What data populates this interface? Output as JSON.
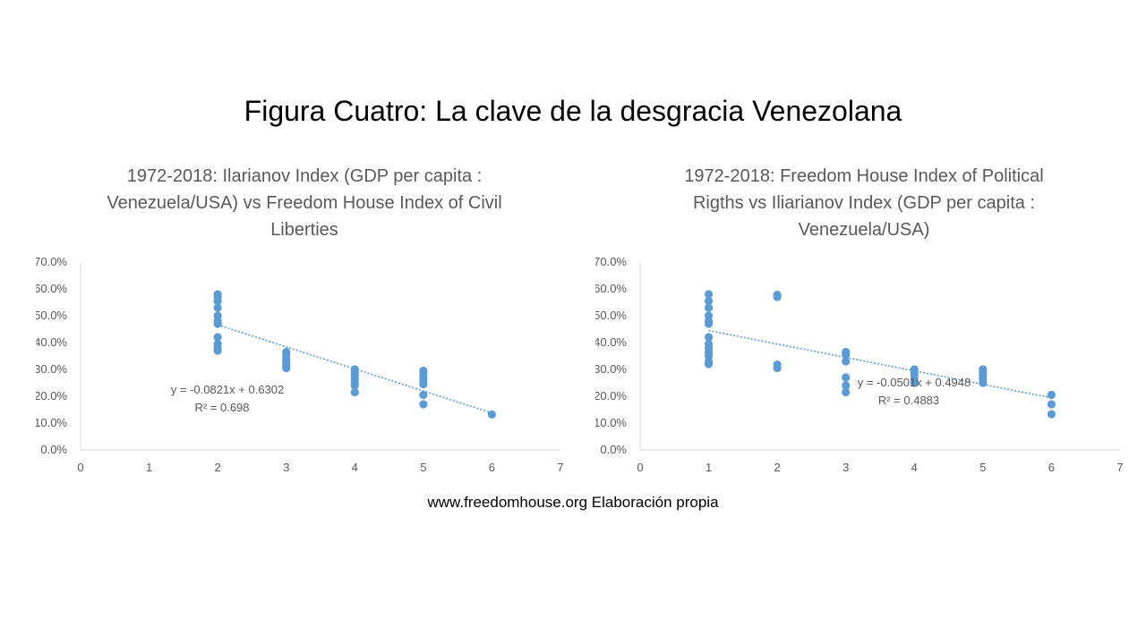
{
  "slide": {
    "title": "Figura Cuatro: La clave de la desgracia Venezolana",
    "footer": "www.freedomhouse.org  Elaboración propia"
  },
  "colors": {
    "point": "#5b9bd5",
    "trendline": "#5b9bd5",
    "axis": "#d9d9d9",
    "text": "#595959"
  },
  "chart_data": [
    {
      "type": "scatter",
      "title": "1972-2018: Ilarianov Index (GDP per capita : Venezuela/USA) vs Freedom House Index of Civil Liberties",
      "title_lines": [
        "1972-2018: Ilarianov Index (GDP per capita :",
        "Venezuela/USA) vs Freedom House Index of Civil",
        "Liberties"
      ],
      "xlim": [
        0,
        7
      ],
      "ylim": [
        0,
        0.7
      ],
      "x_ticks": [
        "0",
        "1",
        "2",
        "3",
        "4",
        "5",
        "6",
        "7"
      ],
      "y_ticks": [
        "0.0%",
        "10.0%",
        "20.0%",
        "30.0%",
        "40.0%",
        "50.0%",
        "60.0%",
        "70.0%"
      ],
      "grid": false,
      "points": [
        {
          "x": 2,
          "y": 0.58
        },
        {
          "x": 2,
          "y": 0.57
        },
        {
          "x": 2,
          "y": 0.555
        },
        {
          "x": 2,
          "y": 0.53
        },
        {
          "x": 2,
          "y": 0.5
        },
        {
          "x": 2,
          "y": 0.48
        },
        {
          "x": 2,
          "y": 0.47
        },
        {
          "x": 2,
          "y": 0.42
        },
        {
          "x": 2,
          "y": 0.395
        },
        {
          "x": 2,
          "y": 0.38
        },
        {
          "x": 2,
          "y": 0.37
        },
        {
          "x": 3,
          "y": 0.365
        },
        {
          "x": 3,
          "y": 0.355
        },
        {
          "x": 3,
          "y": 0.34
        },
        {
          "x": 3,
          "y": 0.33
        },
        {
          "x": 3,
          "y": 0.32
        },
        {
          "x": 3,
          "y": 0.31
        },
        {
          "x": 3,
          "y": 0.305
        },
        {
          "x": 4,
          "y": 0.3
        },
        {
          "x": 4,
          "y": 0.29
        },
        {
          "x": 4,
          "y": 0.28
        },
        {
          "x": 4,
          "y": 0.265
        },
        {
          "x": 4,
          "y": 0.25
        },
        {
          "x": 4,
          "y": 0.24
        },
        {
          "x": 4,
          "y": 0.215
        },
        {
          "x": 5,
          "y": 0.295
        },
        {
          "x": 5,
          "y": 0.285
        },
        {
          "x": 5,
          "y": 0.27
        },
        {
          "x": 5,
          "y": 0.26
        },
        {
          "x": 5,
          "y": 0.245
        },
        {
          "x": 5,
          "y": 0.205
        },
        {
          "x": 5,
          "y": 0.17
        },
        {
          "x": 6,
          "y": 0.132
        }
      ],
      "trendline": {
        "slope": -0.0821,
        "intercept": 0.6302,
        "x_from": 2,
        "x_to": 6
      },
      "equation": "y = -0.0821x + 0.6302",
      "r2": "R² = 0.698"
    },
    {
      "type": "scatter",
      "title": "1972-2018: Freedom House Index of Political Rigths vs Iliarianov Index (GDP per capita : Venezuela/USA)",
      "title_lines": [
        "1972-2018: Freedom House Index of Political",
        "Rigths vs Iliarianov Index (GDP per capita :",
        "Venezuela/USA)"
      ],
      "xlim": [
        0,
        7
      ],
      "ylim": [
        0,
        0.7
      ],
      "x_ticks": [
        "0",
        "1",
        "2",
        "3",
        "4",
        "5",
        "6",
        "7"
      ],
      "y_ticks": [
        "0.0%",
        "10.0%",
        "20.0%",
        "30.0%",
        "40.0%",
        "50.0%",
        "60.0%",
        "70.0%"
      ],
      "grid": false,
      "points": [
        {
          "x": 1,
          "y": 0.58
        },
        {
          "x": 1,
          "y": 0.555
        },
        {
          "x": 1,
          "y": 0.53
        },
        {
          "x": 1,
          "y": 0.5
        },
        {
          "x": 1,
          "y": 0.48
        },
        {
          "x": 1,
          "y": 0.47
        },
        {
          "x": 1,
          "y": 0.42
        },
        {
          "x": 1,
          "y": 0.395
        },
        {
          "x": 1,
          "y": 0.38
        },
        {
          "x": 1,
          "y": 0.365
        },
        {
          "x": 1,
          "y": 0.35
        },
        {
          "x": 1,
          "y": 0.33
        },
        {
          "x": 1,
          "y": 0.32
        },
        {
          "x": 2,
          "y": 0.578
        },
        {
          "x": 2,
          "y": 0.57
        },
        {
          "x": 2,
          "y": 0.318
        },
        {
          "x": 2,
          "y": 0.305
        },
        {
          "x": 3,
          "y": 0.365
        },
        {
          "x": 3,
          "y": 0.355
        },
        {
          "x": 3,
          "y": 0.33
        },
        {
          "x": 3,
          "y": 0.27
        },
        {
          "x": 3,
          "y": 0.24
        },
        {
          "x": 3,
          "y": 0.215
        },
        {
          "x": 4,
          "y": 0.3
        },
        {
          "x": 4,
          "y": 0.29
        },
        {
          "x": 4,
          "y": 0.28
        },
        {
          "x": 4,
          "y": 0.265
        },
        {
          "x": 4,
          "y": 0.25
        },
        {
          "x": 5,
          "y": 0.3
        },
        {
          "x": 5,
          "y": 0.29
        },
        {
          "x": 5,
          "y": 0.28
        },
        {
          "x": 5,
          "y": 0.265
        },
        {
          "x": 5,
          "y": 0.25
        },
        {
          "x": 6,
          "y": 0.205
        },
        {
          "x": 6,
          "y": 0.17
        },
        {
          "x": 6,
          "y": 0.133
        }
      ],
      "trendline": {
        "slope": -0.0501,
        "intercept": 0.4948,
        "x_from": 1,
        "x_to": 6
      },
      "equation": "y = -0.0501x + 0.4948",
      "r2": "R² = 0.4883"
    }
  ]
}
